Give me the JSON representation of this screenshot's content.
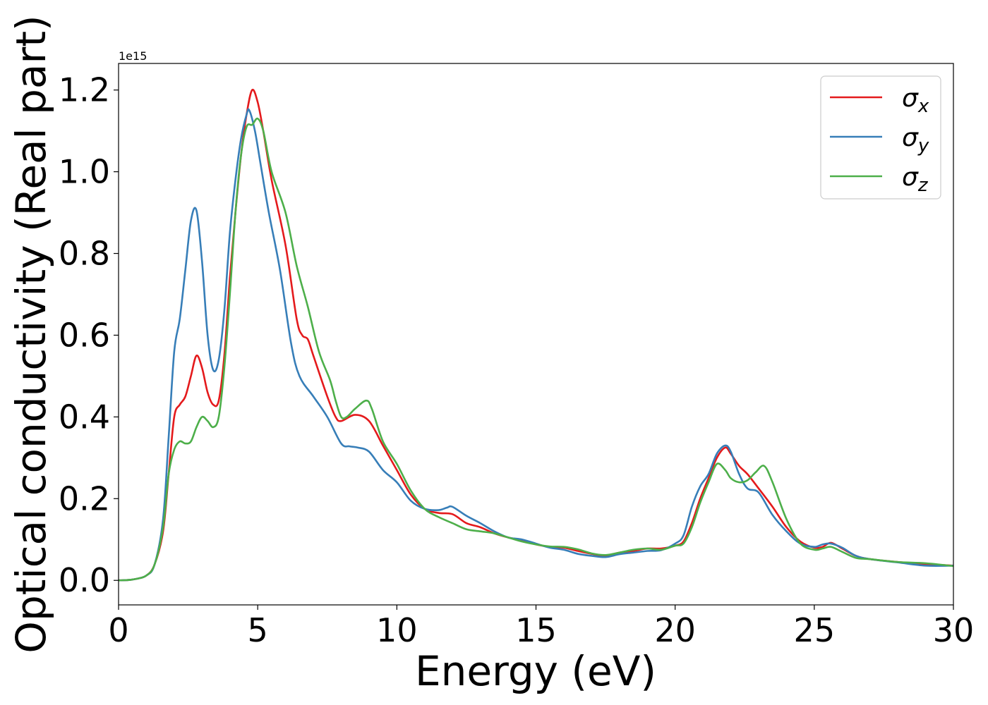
{
  "chart_data": {
    "type": "line",
    "xlabel": "Energy (eV)",
    "ylabel": "Optical conductivity (Real part)",
    "y_offset_label": "1e15",
    "xlim": [
      0,
      30
    ],
    "ylim": [
      -0.06,
      1.265
    ],
    "x_ticks": [
      0,
      5,
      10,
      15,
      20,
      25,
      30
    ],
    "x_tick_labels": [
      "0",
      "5",
      "10",
      "15",
      "20",
      "25",
      "30"
    ],
    "y_ticks": [
      0.0,
      0.2,
      0.4,
      0.6,
      0.8,
      1.0,
      1.2
    ],
    "y_tick_labels": [
      "0.0",
      "0.2",
      "0.4",
      "0.6",
      "0.8",
      "1.0",
      "1.2"
    ],
    "grid": false,
    "legend_position": "top-right",
    "series": [
      {
        "name": "σx",
        "legend_symbol": "σ",
        "legend_sub": "x",
        "color": "#e41a1c",
        "points": [
          [
            0,
            0
          ],
          [
            0.5,
            0.002
          ],
          [
            1.0,
            0.012
          ],
          [
            1.3,
            0.04
          ],
          [
            1.6,
            0.12
          ],
          [
            1.8,
            0.26
          ],
          [
            2.0,
            0.4
          ],
          [
            2.2,
            0.43
          ],
          [
            2.4,
            0.45
          ],
          [
            2.6,
            0.5
          ],
          [
            2.8,
            0.55
          ],
          [
            3.0,
            0.52
          ],
          [
            3.2,
            0.46
          ],
          [
            3.4,
            0.43
          ],
          [
            3.6,
            0.44
          ],
          [
            3.8,
            0.55
          ],
          [
            4.0,
            0.74
          ],
          [
            4.2,
            0.9
          ],
          [
            4.4,
            1.04
          ],
          [
            4.6,
            1.14
          ],
          [
            4.8,
            1.2
          ],
          [
            5.0,
            1.17
          ],
          [
            5.2,
            1.1
          ],
          [
            5.5,
            0.98
          ],
          [
            6.0,
            0.82
          ],
          [
            6.4,
            0.64
          ],
          [
            6.6,
            0.6
          ],
          [
            6.8,
            0.59
          ],
          [
            7.0,
            0.55
          ],
          [
            7.5,
            0.45
          ],
          [
            7.8,
            0.4
          ],
          [
            8.0,
            0.39
          ],
          [
            8.5,
            0.405
          ],
          [
            9.0,
            0.39
          ],
          [
            9.5,
            0.33
          ],
          [
            10.0,
            0.27
          ],
          [
            10.5,
            0.21
          ],
          [
            11.0,
            0.175
          ],
          [
            11.5,
            0.165
          ],
          [
            12.0,
            0.162
          ],
          [
            12.5,
            0.14
          ],
          [
            13.0,
            0.13
          ],
          [
            13.5,
            0.115
          ],
          [
            14.0,
            0.105
          ],
          [
            14.5,
            0.098
          ],
          [
            15.0,
            0.088
          ],
          [
            15.5,
            0.082
          ],
          [
            16.0,
            0.08
          ],
          [
            16.5,
            0.072
          ],
          [
            17.0,
            0.065
          ],
          [
            17.5,
            0.06
          ],
          [
            18.0,
            0.068
          ],
          [
            18.5,
            0.072
          ],
          [
            19.0,
            0.078
          ],
          [
            19.5,
            0.078
          ],
          [
            20.0,
            0.085
          ],
          [
            20.3,
            0.095
          ],
          [
            20.6,
            0.14
          ],
          [
            20.9,
            0.2
          ],
          [
            21.2,
            0.25
          ],
          [
            21.5,
            0.3
          ],
          [
            21.8,
            0.325
          ],
          [
            22.0,
            0.31
          ],
          [
            22.3,
            0.28
          ],
          [
            22.6,
            0.26
          ],
          [
            23.0,
            0.225
          ],
          [
            23.5,
            0.18
          ],
          [
            24.0,
            0.13
          ],
          [
            24.5,
            0.095
          ],
          [
            25.0,
            0.08
          ],
          [
            25.3,
            0.082
          ],
          [
            25.6,
            0.092
          ],
          [
            26.0,
            0.078
          ],
          [
            26.5,
            0.06
          ],
          [
            27.0,
            0.052
          ],
          [
            28.0,
            0.045
          ],
          [
            29.0,
            0.04
          ],
          [
            30.0,
            0.036
          ]
        ]
      },
      {
        "name": "σy",
        "legend_symbol": "σ",
        "legend_sub": "y",
        "color": "#377eb8",
        "points": [
          [
            0,
            0
          ],
          [
            0.5,
            0.002
          ],
          [
            1.0,
            0.012
          ],
          [
            1.3,
            0.04
          ],
          [
            1.6,
            0.15
          ],
          [
            1.8,
            0.35
          ],
          [
            2.0,
            0.56
          ],
          [
            2.2,
            0.64
          ],
          [
            2.4,
            0.76
          ],
          [
            2.6,
            0.88
          ],
          [
            2.8,
            0.905
          ],
          [
            3.0,
            0.78
          ],
          [
            3.2,
            0.6
          ],
          [
            3.4,
            0.515
          ],
          [
            3.6,
            0.54
          ],
          [
            3.8,
            0.66
          ],
          [
            4.0,
            0.85
          ],
          [
            4.2,
            0.98
          ],
          [
            4.4,
            1.08
          ],
          [
            4.6,
            1.14
          ],
          [
            4.7,
            1.15
          ],
          [
            4.9,
            1.1
          ],
          [
            5.1,
            1.02
          ],
          [
            5.4,
            0.9
          ],
          [
            5.8,
            0.76
          ],
          [
            6.2,
            0.58
          ],
          [
            6.5,
            0.5
          ],
          [
            7.0,
            0.45
          ],
          [
            7.5,
            0.4
          ],
          [
            8.0,
            0.335
          ],
          [
            8.3,
            0.328
          ],
          [
            8.6,
            0.325
          ],
          [
            9.0,
            0.315
          ],
          [
            9.5,
            0.27
          ],
          [
            10.0,
            0.24
          ],
          [
            10.5,
            0.195
          ],
          [
            11.0,
            0.175
          ],
          [
            11.5,
            0.172
          ],
          [
            11.8,
            0.178
          ],
          [
            12.0,
            0.18
          ],
          [
            12.5,
            0.158
          ],
          [
            13.0,
            0.14
          ],
          [
            13.5,
            0.12
          ],
          [
            14.0,
            0.105
          ],
          [
            14.5,
            0.1
          ],
          [
            15.0,
            0.09
          ],
          [
            15.5,
            0.08
          ],
          [
            16.0,
            0.075
          ],
          [
            16.5,
            0.065
          ],
          [
            17.0,
            0.06
          ],
          [
            17.5,
            0.057
          ],
          [
            18.0,
            0.064
          ],
          [
            18.5,
            0.068
          ],
          [
            19.0,
            0.072
          ],
          [
            19.5,
            0.074
          ],
          [
            20.0,
            0.09
          ],
          [
            20.3,
            0.11
          ],
          [
            20.6,
            0.18
          ],
          [
            20.9,
            0.23
          ],
          [
            21.2,
            0.26
          ],
          [
            21.5,
            0.31
          ],
          [
            21.8,
            0.33
          ],
          [
            22.0,
            0.315
          ],
          [
            22.3,
            0.26
          ],
          [
            22.6,
            0.225
          ],
          [
            23.0,
            0.215
          ],
          [
            23.5,
            0.16
          ],
          [
            24.0,
            0.12
          ],
          [
            24.5,
            0.09
          ],
          [
            25.0,
            0.082
          ],
          [
            25.3,
            0.088
          ],
          [
            25.6,
            0.09
          ],
          [
            26.0,
            0.08
          ],
          [
            26.5,
            0.06
          ],
          [
            27.0,
            0.052
          ],
          [
            28.0,
            0.044
          ],
          [
            29.0,
            0.036
          ],
          [
            30.0,
            0.036
          ]
        ]
      },
      {
        "name": "σz",
        "legend_symbol": "σ",
        "legend_sub": "z",
        "color": "#4daf4a",
        "points": [
          [
            0,
            0
          ],
          [
            0.5,
            0.002
          ],
          [
            1.0,
            0.012
          ],
          [
            1.3,
            0.04
          ],
          [
            1.6,
            0.13
          ],
          [
            1.8,
            0.26
          ],
          [
            2.0,
            0.32
          ],
          [
            2.2,
            0.34
          ],
          [
            2.4,
            0.335
          ],
          [
            2.6,
            0.34
          ],
          [
            2.8,
            0.375
          ],
          [
            3.0,
            0.4
          ],
          [
            3.2,
            0.39
          ],
          [
            3.4,
            0.375
          ],
          [
            3.6,
            0.4
          ],
          [
            3.8,
            0.52
          ],
          [
            4.0,
            0.7
          ],
          [
            4.2,
            0.9
          ],
          [
            4.4,
            1.04
          ],
          [
            4.6,
            1.11
          ],
          [
            4.8,
            1.115
          ],
          [
            5.0,
            1.13
          ],
          [
            5.2,
            1.1
          ],
          [
            5.5,
            1.0
          ],
          [
            6.0,
            0.9
          ],
          [
            6.4,
            0.77
          ],
          [
            6.8,
            0.67
          ],
          [
            7.2,
            0.56
          ],
          [
            7.6,
            0.49
          ],
          [
            7.8,
            0.44
          ],
          [
            8.0,
            0.4
          ],
          [
            8.2,
            0.4
          ],
          [
            8.5,
            0.42
          ],
          [
            8.9,
            0.44
          ],
          [
            9.1,
            0.42
          ],
          [
            9.5,
            0.34
          ],
          [
            10.0,
            0.285
          ],
          [
            10.5,
            0.22
          ],
          [
            11.0,
            0.175
          ],
          [
            11.5,
            0.155
          ],
          [
            12.0,
            0.14
          ],
          [
            12.5,
            0.125
          ],
          [
            13.0,
            0.12
          ],
          [
            13.5,
            0.115
          ],
          [
            14.0,
            0.105
          ],
          [
            14.5,
            0.095
          ],
          [
            15.0,
            0.088
          ],
          [
            15.5,
            0.083
          ],
          [
            16.0,
            0.082
          ],
          [
            16.5,
            0.076
          ],
          [
            17.0,
            0.066
          ],
          [
            17.5,
            0.062
          ],
          [
            18.0,
            0.068
          ],
          [
            18.5,
            0.075
          ],
          [
            19.0,
            0.078
          ],
          [
            19.5,
            0.075
          ],
          [
            20.0,
            0.085
          ],
          [
            20.3,
            0.09
          ],
          [
            20.6,
            0.13
          ],
          [
            20.9,
            0.19
          ],
          [
            21.2,
            0.24
          ],
          [
            21.5,
            0.285
          ],
          [
            21.8,
            0.27
          ],
          [
            22.0,
            0.25
          ],
          [
            22.3,
            0.24
          ],
          [
            22.6,
            0.245
          ],
          [
            22.9,
            0.265
          ],
          [
            23.2,
            0.28
          ],
          [
            23.5,
            0.24
          ],
          [
            24.0,
            0.15
          ],
          [
            24.5,
            0.09
          ],
          [
            25.0,
            0.075
          ],
          [
            25.3,
            0.078
          ],
          [
            25.6,
            0.082
          ],
          [
            26.0,
            0.07
          ],
          [
            26.5,
            0.055
          ],
          [
            27.0,
            0.052
          ],
          [
            28.0,
            0.045
          ],
          [
            29.0,
            0.042
          ],
          [
            30.0,
            0.035
          ]
        ]
      }
    ]
  }
}
